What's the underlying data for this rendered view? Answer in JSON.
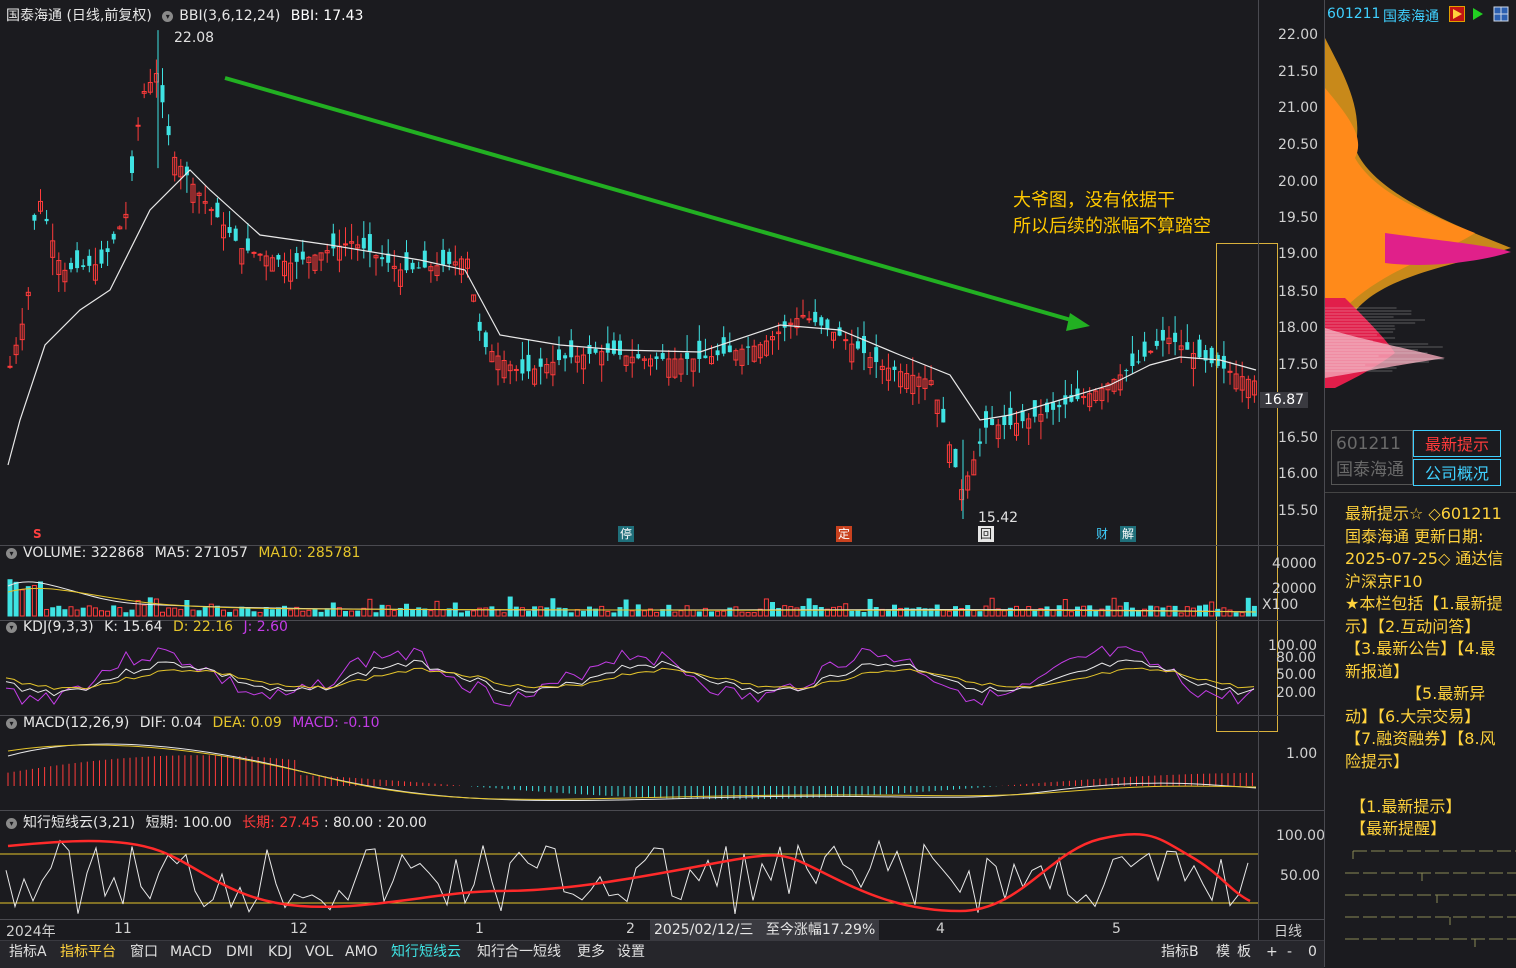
{
  "header": {
    "stock_title": "国泰海通 (日线,前复权)",
    "indicator": "BBI(3,6,12,24)",
    "indicator_value": "BBI: 17.43"
  },
  "price_axis": [
    "22.00",
    "21.50",
    "21.00",
    "20.50",
    "20.00",
    "19.50",
    "19.00",
    "18.50",
    "18.00",
    "17.50",
    "16.87",
    "16.50",
    "16.00",
    "15.50"
  ],
  "annotations": {
    "high_label": "22.08",
    "low_label": "15.42",
    "note_line1": "大爷图，没有依据干",
    "note_line2": "所以后续的涨幅不算踏空",
    "markers": [
      "S",
      "停",
      "定",
      "回",
      "财",
      "解"
    ]
  },
  "volume_panel": {
    "title": "VOLUME: 322868",
    "ma5": "MA5: 271057",
    "ma10": "MA10: 285781",
    "axis": [
      "40000",
      "20000",
      "X100"
    ]
  },
  "kdj_panel": {
    "title": "KDJ(9,3,3)",
    "k": "K: 15.64",
    "d": "D: 22.16",
    "j": "J: 2.60",
    "axis": [
      "100.00",
      "80.00",
      "50.00",
      "20.00"
    ]
  },
  "macd_panel": {
    "title": "MACD(12,26,9)",
    "dif": "DIF: 0.04",
    "dea": "DEA: 0.09",
    "macd": "MACD: -0.10",
    "axis": [
      "1.00"
    ]
  },
  "zx_panel": {
    "title": "知行短线云(3,21)",
    "short": "短期: 100.00",
    "long": "长期: 27.45",
    "levels": ": 80.00 : 20.00",
    "axis": [
      "100.00",
      "50.00"
    ]
  },
  "date_axis": {
    "labels": [
      "2024年",
      "11",
      "12",
      "1",
      "2",
      "4",
      "5"
    ],
    "cursor_date": "2025/02/12/三",
    "cursor_change": "至今涨幅17.29%",
    "period": "日线"
  },
  "bottom_tabs": [
    "指标A",
    "指标平台",
    "窗口",
    "MACD",
    "DMI",
    "KDJ",
    "VOL",
    "AMO",
    "知行短线云",
    "知行合一短线",
    "更多",
    "设置"
  ],
  "bottom_right": [
    "指标B",
    "模",
    "板",
    "+",
    "-",
    "0"
  ],
  "right_panel": {
    "code": "601211",
    "name": "国泰海通",
    "stamp_code": "601211",
    "stamp_name": "国泰海通",
    "btn_latest": "最新提示",
    "btn_company": "公司概况",
    "info": "最新提示☆ ◇601211\n国泰海通 更新日期:\n2025-07-25◇ 通达信\n沪深京F10\n★本栏包括【1.最新提\n示】【2.互动问答】\n【3.最新公告】【4.最\n新报道】\n            【5.最新异\n动】【6.大宗交易】\n【7.融资融券】【8.风\n险提示】\n\n 【1.最新提示】\n 【最新提醒】"
  },
  "colors": {
    "up": "#ff3b3b",
    "down": "#3fe3e3",
    "bg": "#1b1b1f",
    "yellow": "#e5c52b",
    "purple": "#c33ce6",
    "trend": "#22b022"
  }
}
